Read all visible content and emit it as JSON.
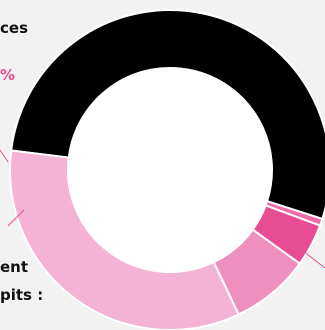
{
  "chart_data": {
    "type": "pie",
    "variant": "donut",
    "title": "",
    "slices": [
      {
        "value": 53.0,
        "color": "#000000"
      },
      {
        "value": 0.7,
        "color": "#f06aa8"
      },
      {
        "value": 4.3,
        "color": "#e84d93"
      },
      {
        "value": 8.0,
        "color": "#ef8fbe"
      },
      {
        "value": 34.0,
        "color": "#f4b3d4"
      }
    ],
    "visible_label_fragments": {
      "top_left_line1": "ces",
      "top_left_percent": "%",
      "bottom_left_line1": "ent",
      "bottom_left_line2": "pits :"
    },
    "colors": {
      "background": "#f2f2f2",
      "hole": "#ffffff",
      "leader_line": "#e84d93",
      "label_text": "#111111",
      "percent_text": "#e84d93"
    }
  }
}
